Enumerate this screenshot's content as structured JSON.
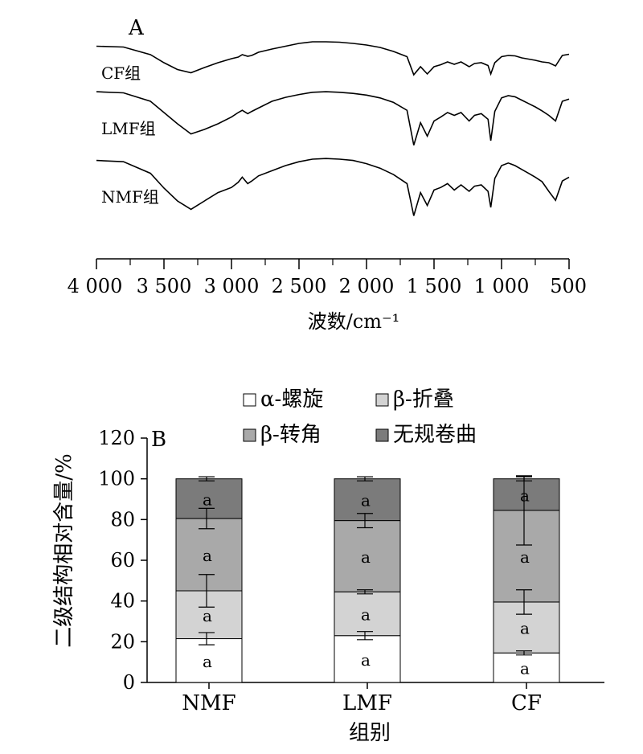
{
  "chart_data": [
    {
      "type": "line",
      "panel_label": "A",
      "xlabel": "波数/cm⁻¹",
      "ylabel": "",
      "xlim": [
        4000,
        500
      ],
      "x_reversed": true,
      "x_ticks": [
        4000,
        3500,
        3000,
        2500,
        2000,
        1500,
        1000,
        500
      ],
      "x_tick_labels": [
        "4 000",
        "3 500",
        "3 000",
        "2 500",
        "2 000",
        "1 500",
        "1 000",
        "500"
      ],
      "y_axis_shown": false,
      "series": [
        {
          "name": "CF组",
          "points": [
            [
              4000,
              0.81
            ],
            [
              3800,
              0.79
            ],
            [
              3600,
              0.6
            ],
            [
              3500,
              0.4
            ],
            [
              3400,
              0.23
            ],
            [
              3300,
              0.15
            ],
            [
              3200,
              0.28
            ],
            [
              3100,
              0.4
            ],
            [
              3000,
              0.5
            ],
            [
              2950,
              0.54
            ],
            [
              2920,
              0.6
            ],
            [
              2880,
              0.56
            ],
            [
              2850,
              0.58
            ],
            [
              2800,
              0.66
            ],
            [
              2700,
              0.74
            ],
            [
              2600,
              0.81
            ],
            [
              2500,
              0.88
            ],
            [
              2400,
              0.92
            ],
            [
              2300,
              0.92
            ],
            [
              2200,
              0.91
            ],
            [
              2100,
              0.88
            ],
            [
              2000,
              0.84
            ],
            [
              1900,
              0.78
            ],
            [
              1800,
              0.68
            ],
            [
              1700,
              0.55
            ],
            [
              1650,
              0.1
            ],
            [
              1600,
              0.3
            ],
            [
              1550,
              0.12
            ],
            [
              1500,
              0.3
            ],
            [
              1450,
              0.35
            ],
            [
              1400,
              0.42
            ],
            [
              1350,
              0.36
            ],
            [
              1300,
              0.42
            ],
            [
              1240,
              0.3
            ],
            [
              1200,
              0.38
            ],
            [
              1150,
              0.4
            ],
            [
              1100,
              0.33
            ],
            [
              1080,
              0.12
            ],
            [
              1050,
              0.4
            ],
            [
              1000,
              0.55
            ],
            [
              950,
              0.58
            ],
            [
              900,
              0.57
            ],
            [
              850,
              0.52
            ],
            [
              800,
              0.49
            ],
            [
              750,
              0.46
            ],
            [
              700,
              0.42
            ],
            [
              650,
              0.4
            ],
            [
              600,
              0.32
            ],
            [
              550,
              0.58
            ],
            [
              500,
              0.61
            ]
          ]
        },
        {
          "name": "LMF组",
          "points": [
            [
              4000,
              0.97
            ],
            [
              3800,
              0.95
            ],
            [
              3600,
              0.8
            ],
            [
              3500,
              0.6
            ],
            [
              3400,
              0.4
            ],
            [
              3300,
              0.22
            ],
            [
              3200,
              0.3
            ],
            [
              3100,
              0.4
            ],
            [
              3000,
              0.52
            ],
            [
              2950,
              0.6
            ],
            [
              2920,
              0.64
            ],
            [
              2880,
              0.58
            ],
            [
              2850,
              0.62
            ],
            [
              2800,
              0.68
            ],
            [
              2700,
              0.8
            ],
            [
              2600,
              0.87
            ],
            [
              2500,
              0.92
            ],
            [
              2400,
              0.96
            ],
            [
              2300,
              0.97
            ],
            [
              2200,
              0.96
            ],
            [
              2100,
              0.94
            ],
            [
              2000,
              0.91
            ],
            [
              1900,
              0.86
            ],
            [
              1800,
              0.78
            ],
            [
              1700,
              0.64
            ],
            [
              1650,
              0.02
            ],
            [
              1600,
              0.42
            ],
            [
              1550,
              0.18
            ],
            [
              1500,
              0.45
            ],
            [
              1450,
              0.52
            ],
            [
              1400,
              0.6
            ],
            [
              1350,
              0.55
            ],
            [
              1300,
              0.6
            ],
            [
              1240,
              0.45
            ],
            [
              1200,
              0.55
            ],
            [
              1150,
              0.58
            ],
            [
              1100,
              0.48
            ],
            [
              1080,
              0.1
            ],
            [
              1050,
              0.62
            ],
            [
              1000,
              0.86
            ],
            [
              950,
              0.9
            ],
            [
              900,
              0.88
            ],
            [
              850,
              0.82
            ],
            [
              800,
              0.76
            ],
            [
              750,
              0.7
            ],
            [
              700,
              0.63
            ],
            [
              650,
              0.55
            ],
            [
              600,
              0.45
            ],
            [
              550,
              0.8
            ],
            [
              500,
              0.84
            ]
          ]
        },
        {
          "name": "NMF组",
          "points": [
            [
              4000,
              0.88
            ],
            [
              3800,
              0.86
            ],
            [
              3600,
              0.68
            ],
            [
              3500,
              0.45
            ],
            [
              3400,
              0.25
            ],
            [
              3300,
              0.12
            ],
            [
              3200,
              0.25
            ],
            [
              3100,
              0.38
            ],
            [
              3000,
              0.46
            ],
            [
              2950,
              0.54
            ],
            [
              2920,
              0.62
            ],
            [
              2880,
              0.52
            ],
            [
              2850,
              0.56
            ],
            [
              2800,
              0.64
            ],
            [
              2700,
              0.72
            ],
            [
              2600,
              0.8
            ],
            [
              2500,
              0.86
            ],
            [
              2400,
              0.9
            ],
            [
              2300,
              0.91
            ],
            [
              2200,
              0.9
            ],
            [
              2100,
              0.88
            ],
            [
              2000,
              0.83
            ],
            [
              1900,
              0.76
            ],
            [
              1800,
              0.66
            ],
            [
              1700,
              0.52
            ],
            [
              1650,
              0.02
            ],
            [
              1600,
              0.38
            ],
            [
              1550,
              0.18
            ],
            [
              1500,
              0.42
            ],
            [
              1450,
              0.46
            ],
            [
              1400,
              0.52
            ],
            [
              1350,
              0.42
            ],
            [
              1300,
              0.5
            ],
            [
              1240,
              0.4
            ],
            [
              1200,
              0.48
            ],
            [
              1150,
              0.5
            ],
            [
              1100,
              0.4
            ],
            [
              1080,
              0.15
            ],
            [
              1050,
              0.6
            ],
            [
              1000,
              0.8
            ],
            [
              950,
              0.84
            ],
            [
              900,
              0.8
            ],
            [
              850,
              0.74
            ],
            [
              800,
              0.68
            ],
            [
              750,
              0.62
            ],
            [
              700,
              0.55
            ],
            [
              650,
              0.4
            ],
            [
              600,
              0.26
            ],
            [
              550,
              0.56
            ],
            [
              500,
              0.62
            ]
          ]
        }
      ]
    },
    {
      "type": "bar",
      "stacked": true,
      "panel_label": "B",
      "xlabel": "组别",
      "ylabel": "二级结构相对含量/%",
      "ylim": [
        0,
        120
      ],
      "y_ticks": [
        0,
        20,
        40,
        60,
        80,
        100,
        120
      ],
      "categories": [
        "NMF",
        "LMF",
        "CF"
      ],
      "legend_position": "top",
      "series": [
        {
          "name": "α-螺旋",
          "color": "#ffffff",
          "values": [
            21.5,
            23,
            14.5
          ],
          "errors": [
            3,
            2,
            1
          ],
          "labels": [
            "a",
            "a",
            "a"
          ]
        },
        {
          "name": "β-折叠",
          "color": "#d3d3d3",
          "values": [
            23.5,
            21.5,
            25
          ],
          "errors": [
            8,
            1,
            6
          ],
          "labels": [
            "a",
            "a",
            "a"
          ]
        },
        {
          "name": "β-转角",
          "color": "#a9a9a9",
          "values": [
            35.5,
            35,
            45
          ],
          "errors": [
            5,
            3.5,
            17
          ],
          "labels": [
            "a",
            "a",
            "a"
          ]
        },
        {
          "name": "无规卷曲",
          "color": "#7b7b7b",
          "values": [
            19.5,
            20.5,
            15.5
          ],
          "errors": [
            1,
            1,
            1
          ],
          "labels": [
            "a",
            "a",
            "a"
          ]
        }
      ]
    }
  ]
}
